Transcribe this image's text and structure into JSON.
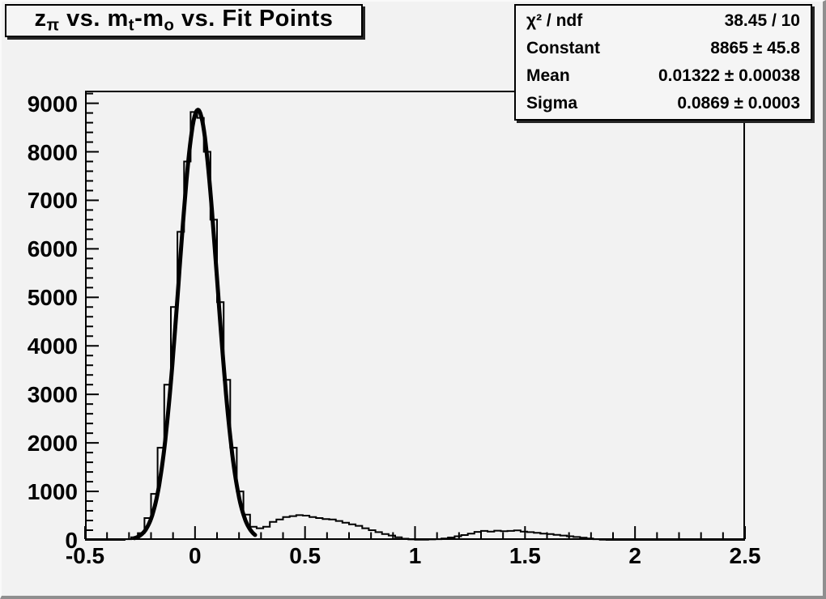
{
  "title": {
    "plain": "z_π vs. m_t-m_o vs. Fit Points",
    "segments": [
      {
        "text": "z"
      },
      {
        "sub": "π"
      },
      {
        "text": " vs. m"
      },
      {
        "sub": "t"
      },
      {
        "text": "-m"
      },
      {
        "sub": "o"
      },
      {
        "text": " vs. Fit Points"
      }
    ]
  },
  "stats_box": {
    "rows": [
      {
        "label": "χ² / ndf",
        "value": "38.45 / 10"
      },
      {
        "label": "Constant",
        "value": "8865 ± 45.8"
      },
      {
        "label": "Mean",
        "value": "0.01322 ± 0.00038"
      },
      {
        "label": "Sigma",
        "value": "0.0869 ± 0.0003"
      }
    ]
  },
  "colors": {
    "canvas_bg": "#f2f2f2",
    "pave_bg": "#f5f5f5",
    "line": "#000000"
  },
  "chart_data": {
    "type": "bar",
    "subtype": "histogram-with-gaussian-fit",
    "title": "z_π vs. m_t-m_o vs. Fit Points",
    "xlabel": "",
    "ylabel": "",
    "xlim": [
      -0.5,
      2.5
    ],
    "ylim": [
      0,
      9260
    ],
    "grid": false,
    "legend_position": "none",
    "bin_start": -0.5,
    "bin_width": 0.03,
    "bin_values": [
      0,
      0,
      0,
      0,
      0,
      0,
      15,
      55,
      140,
      450,
      950,
      1900,
      3200,
      4800,
      6350,
      7800,
      8820,
      8700,
      8000,
      6600,
      4900,
      3300,
      1900,
      1000,
      520,
      270,
      240,
      270,
      370,
      420,
      470,
      490,
      510,
      500,
      470,
      450,
      430,
      420,
      390,
      355,
      320,
      290,
      240,
      200,
      160,
      120,
      90,
      55,
      25,
      10,
      5,
      5,
      10,
      15,
      30,
      50,
      75,
      100,
      130,
      165,
      185,
      170,
      190,
      180,
      185,
      195,
      170,
      160,
      145,
      130,
      120,
      105,
      90,
      75,
      60,
      45,
      30,
      15,
      5,
      0,
      0,
      0,
      0,
      0,
      0,
      0,
      0,
      0,
      0,
      0,
      0,
      0,
      0,
      0,
      0,
      0,
      0,
      0,
      0,
      0
    ],
    "x_major_ticks": [
      -0.5,
      0,
      0.5,
      1,
      1.5,
      2,
      2.5
    ],
    "x_tick_labels": [
      "-0.5",
      "0",
      "0.5",
      "1",
      "1.5",
      "2",
      "2.5"
    ],
    "x_minor_step": 0.1,
    "y_major_ticks": [
      0,
      1000,
      2000,
      3000,
      4000,
      5000,
      6000,
      7000,
      8000,
      9000
    ],
    "y_tick_labels": [
      "0",
      "1000",
      "2000",
      "3000",
      "4000",
      "5000",
      "6000",
      "7000",
      "8000",
      "9000"
    ],
    "y_minor_step": 200,
    "fit": {
      "model": "gaussian",
      "chi2_ndf": "38.45 / 10",
      "constant": 8865,
      "constant_err": 45.8,
      "mean": 0.01322,
      "mean_err": 0.00038,
      "sigma": 0.0869,
      "sigma_err": 0.0003,
      "draw_range": [
        -0.275,
        0.275
      ]
    }
  }
}
